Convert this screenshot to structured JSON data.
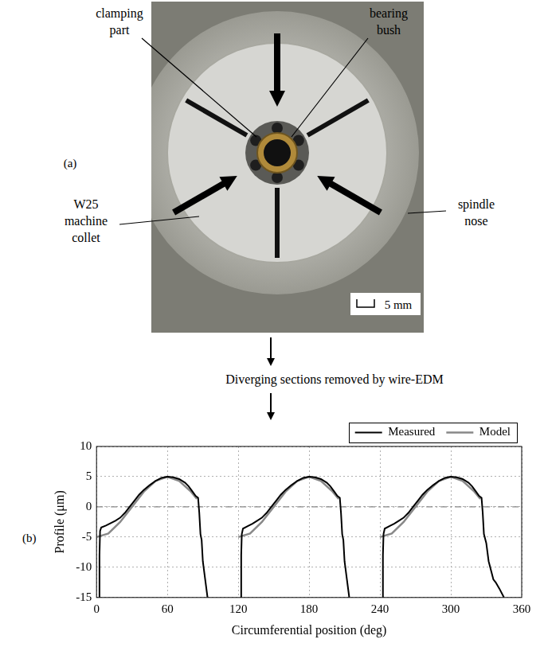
{
  "figure": {
    "panel_a": {
      "letter": "(a)",
      "labels": [
        "clamping part",
        "bearing bush",
        "W25 machine collet",
        "spindle nose"
      ],
      "scale_bar": "5 mm"
    },
    "caption": "Diverging sections removed by wire-EDM"
  },
  "chart_data": {
    "type": "line",
    "panel": "(b)",
    "x_label": "Circumferential position (deg)",
    "y_label": "Profile (μm)",
    "xlim": [
      0,
      360
    ],
    "xticks": [
      0,
      60,
      120,
      180,
      240,
      300,
      360
    ],
    "ylim": [
      -15,
      10
    ],
    "yticks": [
      -15,
      -10,
      -5,
      0,
      5,
      10
    ],
    "grid": true,
    "legend": "top",
    "reference_lines": [
      {
        "y": 0,
        "color": "#888888",
        "line_style": "dashdot"
      }
    ],
    "series": [
      {
        "name": "Measured",
        "color": "#000000",
        "line_style": "solid",
        "x": [
          2,
          2.5,
          3,
          4,
          8,
          12,
          16,
          20,
          24,
          28,
          32,
          36,
          40,
          45,
          50,
          55,
          60,
          65,
          70,
          75,
          78,
          81,
          84,
          86,
          87,
          88,
          89,
          90,
          92,
          94,
          null,
          122,
          122.5,
          123,
          124,
          128,
          132,
          136,
          140,
          144,
          148,
          152,
          156,
          160,
          165,
          170,
          175,
          180,
          185,
          190,
          195,
          198,
          201,
          204,
          206,
          207,
          208,
          209,
          210,
          212,
          214,
          null,
          242,
          242.5,
          243,
          244,
          248,
          252,
          256,
          260,
          264,
          268,
          272,
          276,
          280,
          285,
          290,
          295,
          300,
          305,
          310,
          315,
          318,
          321,
          324,
          326,
          327,
          328,
          330,
          332,
          336,
          338,
          341,
          345
        ],
        "values": [
          -15,
          -8,
          -4,
          -3.4,
          -3.1,
          -2.7,
          -2.3,
          -1.8,
          -1,
          0,
          1,
          2,
          2.8,
          3.6,
          4.3,
          4.8,
          5,
          4.9,
          4.6,
          4,
          3.4,
          2.6,
          1.8,
          1.5,
          -1,
          -4.5,
          -5.5,
          -9,
          -12,
          -15,
          null,
          -15,
          -8,
          -4.5,
          -3.6,
          -3.2,
          -2.8,
          -2.3,
          -1.8,
          -1,
          0,
          1,
          2,
          2.8,
          3.6,
          4.3,
          4.8,
          5,
          4.9,
          4.6,
          4,
          3.4,
          2.6,
          1.8,
          1.5,
          -1,
          -4.5,
          -5.5,
          -9,
          -12,
          -15,
          null,
          -15,
          -8,
          -4.5,
          -3.6,
          -3.2,
          -2.8,
          -2.3,
          -1.8,
          -1,
          0,
          1,
          2,
          2.8,
          3.6,
          4.3,
          4.8,
          5,
          4.9,
          4.6,
          4,
          3.4,
          2.6,
          1.8,
          1.5,
          -1,
          -4.5,
          -6,
          -9,
          -12,
          -12.5,
          -13.5,
          -15
        ]
      },
      {
        "name": "Model",
        "color": "#888888",
        "line_style": "solid",
        "x": [
          0,
          10,
          20,
          30,
          40,
          50,
          60,
          70,
          80,
          85,
          null,
          120,
          130,
          140,
          150,
          160,
          170,
          180,
          190,
          200,
          205,
          null,
          240,
          250,
          260,
          270,
          280,
          290,
          300,
          310,
          320,
          325
        ],
        "values": [
          -5,
          -4.4,
          -2.5,
          0,
          2.5,
          4.3,
          5,
          4.3,
          2.5,
          1.3,
          null,
          -5,
          -4.4,
          -2.5,
          0,
          2.5,
          4.3,
          5,
          4.3,
          2.5,
          1.3,
          null,
          -5,
          -4.4,
          -2.5,
          0,
          2.5,
          4.3,
          5,
          4.3,
          2.5,
          1.3
        ]
      }
    ]
  }
}
